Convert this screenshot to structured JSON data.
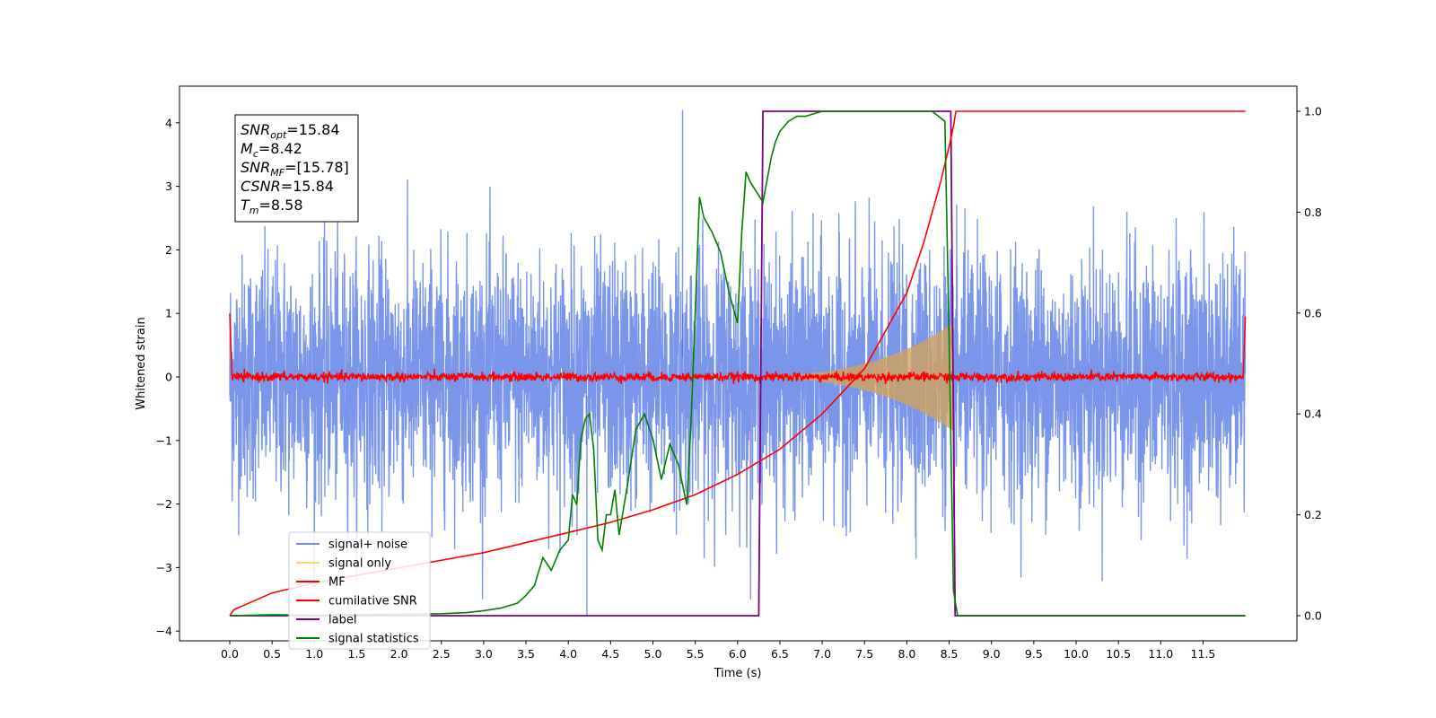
{
  "chart_data": {
    "type": "line",
    "title": "",
    "xlabel": "Time (s)",
    "ylabel_left": "Whitened strain",
    "ylabel_right": "",
    "xlim": [
      0,
      12
    ],
    "ylim_left": [
      -4.15,
      4.55
    ],
    "ylim_right": [
      -0.05,
      1.05
    ],
    "x_ticks": [
      "0.0",
      "0.5",
      "1.0",
      "1.5",
      "2.0",
      "2.5",
      "3.0",
      "3.5",
      "4.0",
      "4.5",
      "5.0",
      "5.5",
      "6.0",
      "6.5",
      "7.0",
      "7.5",
      "8.0",
      "8.5",
      "9.0",
      "9.5",
      "10.0",
      "10.5",
      "11.0",
      "11.5"
    ],
    "y_ticks_left": [
      "4",
      "3",
      "2",
      "1",
      "0",
      "−1",
      "−2",
      "−3",
      "−4"
    ],
    "y_ticks_right": [
      "1.0",
      "0.8",
      "0.6",
      "0.4",
      "0.2",
      "0.0"
    ],
    "grid": false,
    "legend_position": "lower-left",
    "annotation": {
      "lines": [
        {
          "var": "SNR",
          "sub": "opt",
          "value": "=15.84"
        },
        {
          "var": "M",
          "sub": "c",
          "value": "=8.42"
        },
        {
          "var": "SNR",
          "sub": "MF",
          "value": "=[15.78]"
        },
        {
          "var": "CSNR",
          "sub": "",
          "value": "=15.84"
        },
        {
          "var": "T",
          "sub": "m",
          "value": "=8.58"
        }
      ]
    },
    "series": [
      {
        "name": "signal+ noise",
        "axis": "left",
        "color": "#4169e1",
        "alpha": 0.7,
        "description_values": {
          "x_range": [
            0,
            12
          ],
          "approx_std": 1.0,
          "max": 4.2,
          "min": -3.75
        }
      },
      {
        "name": "signal only",
        "axis": "left",
        "color": "#ffa500",
        "alpha": 0.5,
        "chirp": {
          "start": 5.6,
          "end": 8.55,
          "amp_end": 0.85
        }
      },
      {
        "name": "MF",
        "axis": "left",
        "color": "#ff0000",
        "values": {
          "baseline": 0.0,
          "jitter": 0.06,
          "start_spike": 1.0,
          "end_spike": 0.95
        }
      },
      {
        "name": "cumilative SNR",
        "axis": "right",
        "color": "#ff0000",
        "x": [
          0.0,
          0.05,
          0.5,
          1.0,
          2.0,
          3.0,
          4.0,
          4.5,
          5.0,
          5.5,
          6.0,
          6.5,
          7.0,
          7.5,
          8.0,
          8.2,
          8.4,
          8.5,
          8.55,
          8.58,
          12.0
        ],
        "y": [
          0.0,
          0.012,
          0.045,
          0.065,
          0.095,
          0.125,
          0.165,
          0.185,
          0.21,
          0.24,
          0.28,
          0.33,
          0.4,
          0.49,
          0.64,
          0.74,
          0.86,
          0.93,
          0.97,
          1.0,
          1.0
        ]
      },
      {
        "name": "label",
        "axis": "right",
        "color": "#800080",
        "x": [
          0.0,
          6.25,
          6.3,
          8.52,
          8.57,
          12.0
        ],
        "y": [
          0.0,
          0.0,
          1.0,
          1.0,
          0.0,
          0.0
        ]
      },
      {
        "name": "signal statistics",
        "axis": "right",
        "color": "#008000",
        "x": [
          0.0,
          0.5,
          1.0,
          2.0,
          2.5,
          2.8,
          3.0,
          3.2,
          3.4,
          3.5,
          3.6,
          3.7,
          3.8,
          3.9,
          4.0,
          4.05,
          4.1,
          4.15,
          4.2,
          4.25,
          4.3,
          4.35,
          4.4,
          4.45,
          4.5,
          4.55,
          4.6,
          4.7,
          4.8,
          4.9,
          5.0,
          5.1,
          5.2,
          5.3,
          5.4,
          5.45,
          5.5,
          5.55,
          5.6,
          5.7,
          5.8,
          5.9,
          6.0,
          6.05,
          6.1,
          6.15,
          6.3,
          6.4,
          6.45,
          6.5,
          6.6,
          6.7,
          6.8,
          7.0,
          7.2,
          7.5,
          8.0,
          8.3,
          8.45,
          8.5,
          8.55,
          8.6,
          12.0
        ],
        "y": [
          0.0,
          0.002,
          0.001,
          0.003,
          0.004,
          0.006,
          0.01,
          0.015,
          0.025,
          0.04,
          0.06,
          0.115,
          0.09,
          0.13,
          0.15,
          0.24,
          0.22,
          0.35,
          0.39,
          0.4,
          0.33,
          0.15,
          0.13,
          0.2,
          0.2,
          0.25,
          0.16,
          0.26,
          0.37,
          0.4,
          0.35,
          0.27,
          0.34,
          0.3,
          0.22,
          0.38,
          0.6,
          0.83,
          0.79,
          0.76,
          0.72,
          0.64,
          0.58,
          0.76,
          0.88,
          0.86,
          0.82,
          0.91,
          0.94,
          0.96,
          0.98,
          0.99,
          0.99,
          1.0,
          1.0,
          1.0,
          1.0,
          1.0,
          0.98,
          0.55,
          0.05,
          0.0,
          0.0
        ]
      }
    ]
  }
}
